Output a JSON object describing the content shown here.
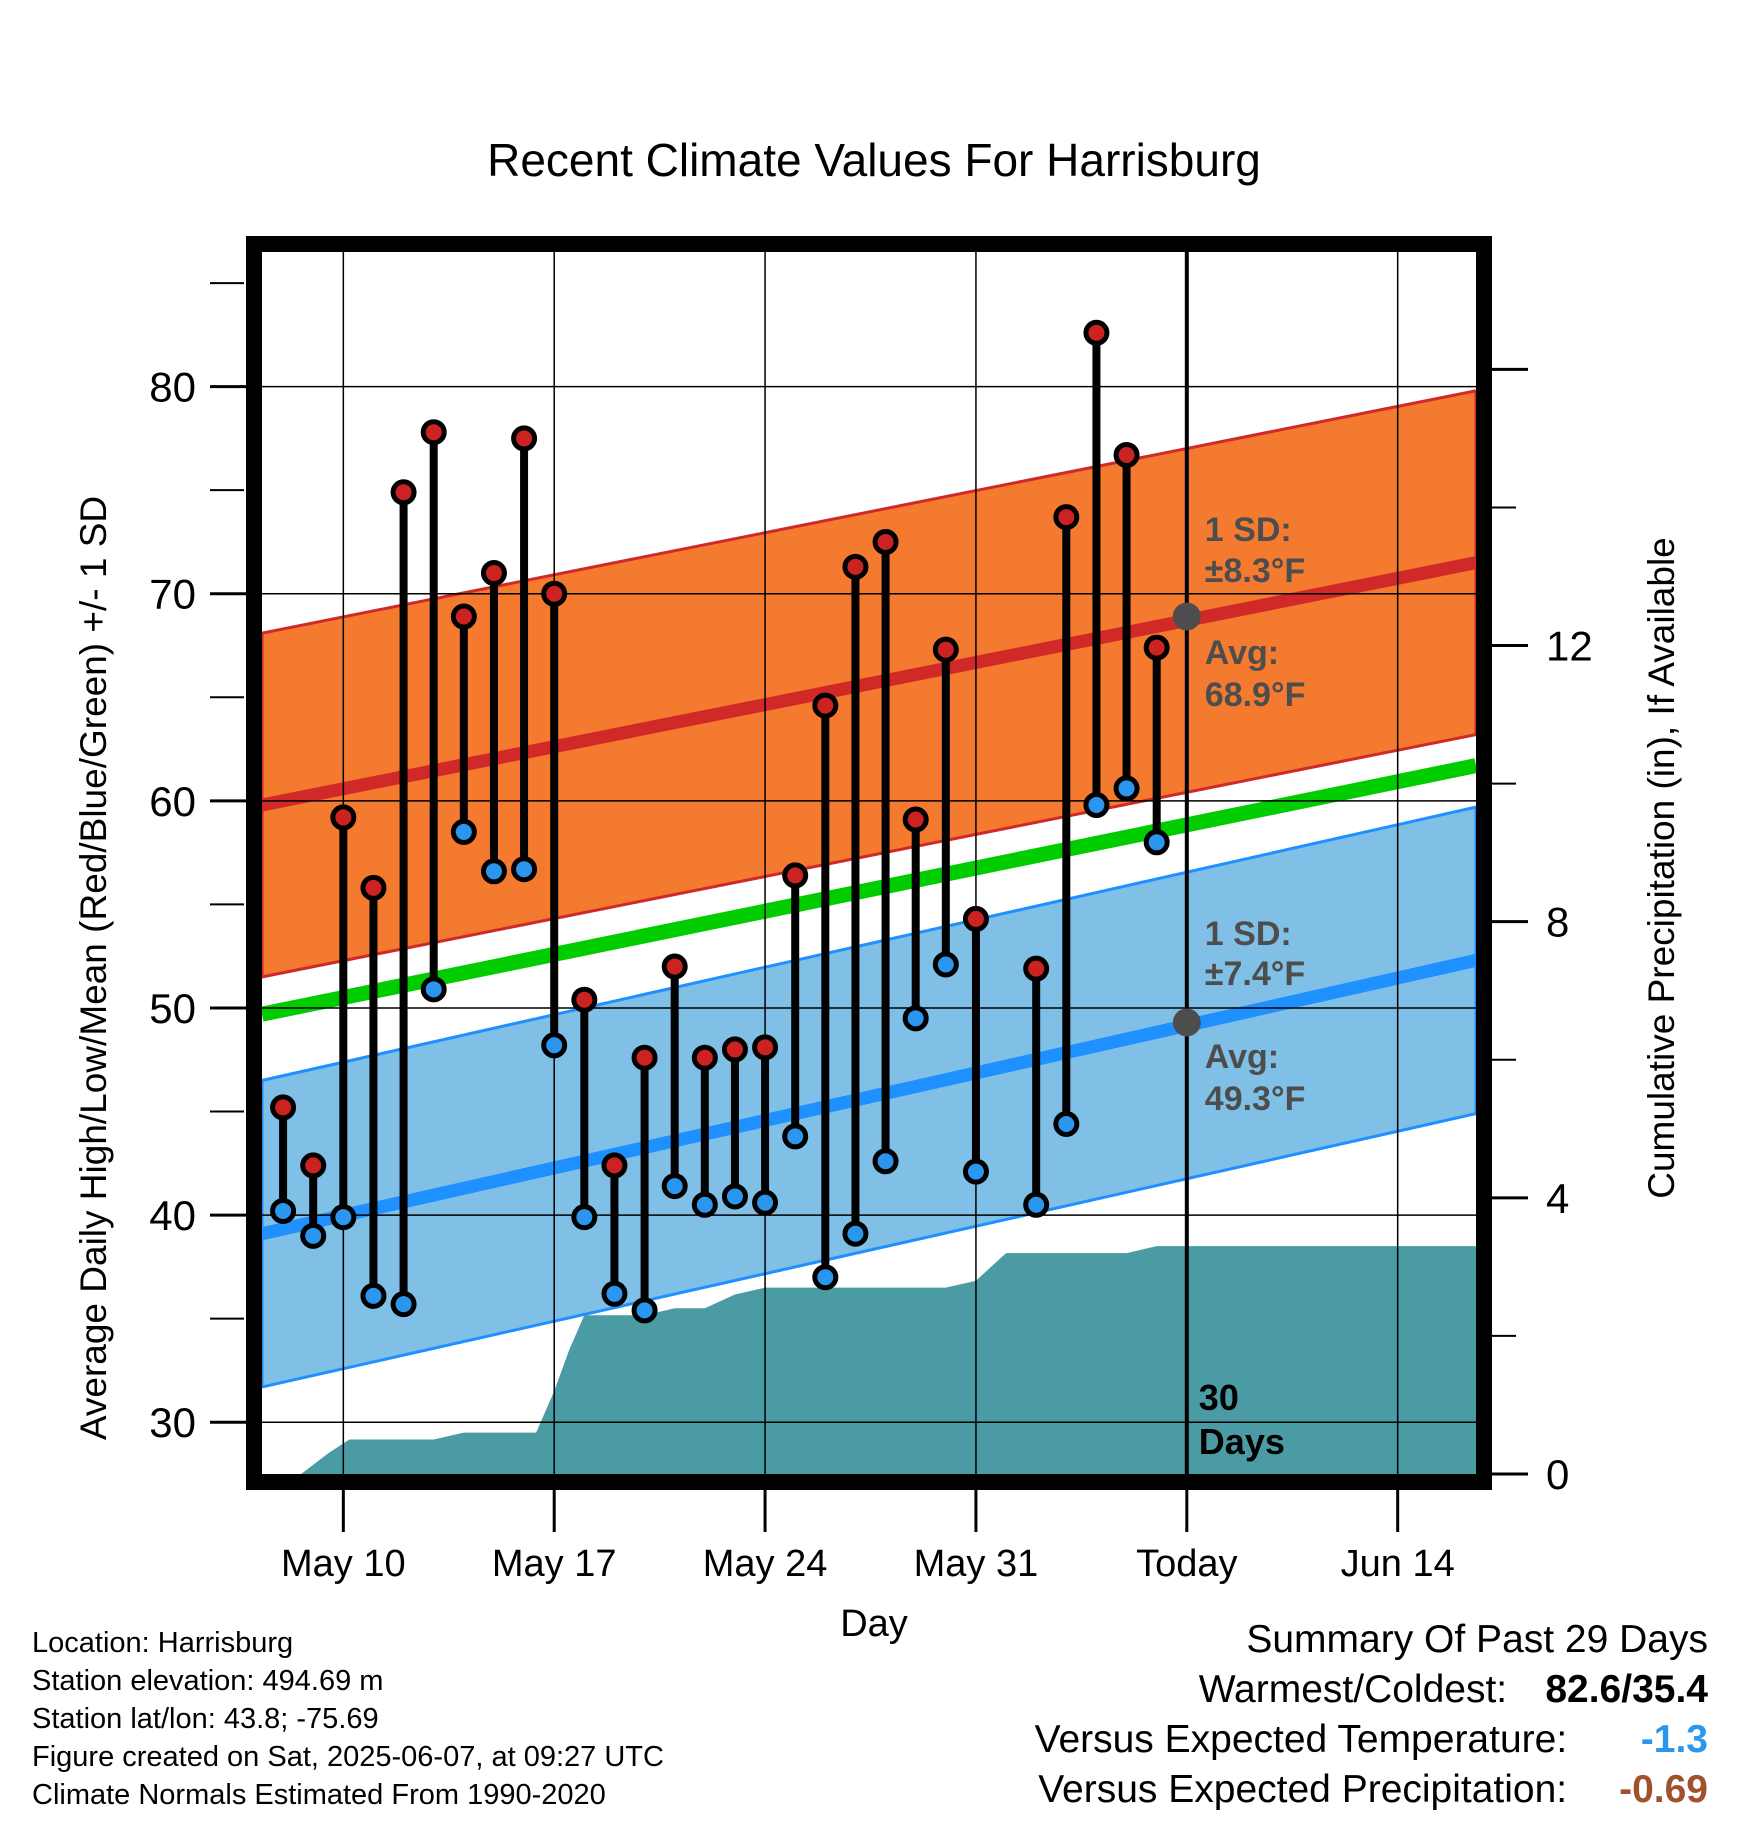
{
  "chart_data": {
    "type": "line",
    "title": "Recent Climate Values For Harrisburg",
    "xlabel": "Day",
    "ylabel": "Average Daily High/Low/Mean (Red/Blue/Green) +/- 1 SD",
    "y2label": "Cumulative Precipitation (in), If Available",
    "ylim": [
      27.5,
      86.5
    ],
    "y2lim": [
      0,
      17.7
    ],
    "y_ticks": [
      30,
      40,
      50,
      60,
      70,
      80
    ],
    "y2_ticks": [
      0,
      4,
      8,
      12
    ],
    "x_ticks": [
      "May 10",
      "May 17",
      "May 24",
      "May 31",
      "Today",
      "Jun 14"
    ],
    "x_tick_days": [
      10,
      17,
      24,
      31,
      38,
      45
    ],
    "xlim": [
      7.3,
      47.6
    ],
    "grid": true,
    "today_day": 38,
    "today_label": "30\nDays",
    "days": [
      8,
      9,
      10,
      11,
      12,
      13,
      14,
      15,
      16,
      17,
      18,
      19,
      20,
      21,
      22,
      23,
      24,
      25,
      26,
      27,
      28,
      29,
      30,
      31,
      32,
      33,
      34,
      35,
      36,
      37
    ],
    "observed_high": [
      45.2,
      42.4,
      59.2,
      55.8,
      74.9,
      77.8,
      68.9,
      71.0,
      77.5,
      70.0,
      50.4,
      42.4,
      47.6,
      52.0,
      47.6,
      48.0,
      48.1,
      56.4,
      64.6,
      71.3,
      72.5,
      59.1,
      67.3,
      54.3,
      null,
      51.9,
      73.7,
      82.6,
      76.7,
      67.4
    ],
    "observed_low": [
      40.2,
      39.0,
      39.9,
      36.1,
      35.7,
      50.9,
      58.5,
      56.6,
      56.7,
      48.2,
      39.9,
      36.2,
      35.4,
      41.4,
      40.5,
      40.9,
      40.6,
      43.8,
      37.0,
      39.1,
      42.6,
      49.5,
      52.1,
      42.1,
      null,
      40.5,
      44.4,
      59.8,
      60.6,
      58.0
    ],
    "normal_high_mean": {
      "x": [
        7.3,
        47.6
      ],
      "y": [
        59.8,
        71.5
      ]
    },
    "normal_high_sd": 8.3,
    "normal_low_mean": {
      "x": [
        7.3,
        47.6
      ],
      "y": [
        39.1,
        52.3
      ]
    },
    "normal_low_sd": 7.4,
    "normal_mean": {
      "x": [
        7.3,
        47.6
      ],
      "y": [
        49.7,
        61.7
      ]
    },
    "colors": {
      "high_band": "#f47a2f",
      "high_line": "#d12828",
      "low_band": "#80c0e6",
      "low_line": "#1e90ff",
      "mean_line": "#00cc00",
      "precip": "#4a9ba3",
      "high_marker": "#cc2222",
      "low_marker": "#2b96ee",
      "avg_dot": "#4d4d4d"
    },
    "precip_cumulative": {
      "x": [
        7.3,
        8.6,
        9.5,
        10.2,
        11.0,
        12.0,
        13.0,
        14.0,
        15.0,
        16.0,
        16.4,
        17.0,
        17.5,
        18.0,
        19.0,
        20.0,
        21.0,
        22.0,
        23.0,
        24.0,
        25.0,
        26.0,
        27.0,
        28.0,
        29.0,
        30.0,
        31.0,
        32.0,
        33.0,
        34.0,
        35.0,
        36.0,
        37.0,
        38.0,
        39.0,
        40.0,
        47.6
      ],
      "y": [
        0,
        0,
        0.3,
        0.5,
        0.5,
        0.5,
        0.5,
        0.6,
        0.6,
        0.6,
        0.6,
        1.2,
        1.8,
        2.3,
        2.3,
        2.3,
        2.4,
        2.4,
        2.6,
        2.7,
        2.7,
        2.7,
        2.7,
        2.7,
        2.7,
        2.7,
        2.8,
        3.2,
        3.2,
        3.2,
        3.2,
        3.2,
        3.3,
        3.3,
        3.3,
        3.3,
        3.3
      ]
    },
    "annotations": {
      "high_sd": "1 SD:",
      "high_sd_value": "±8.3°F",
      "high_avg": "Avg:",
      "high_avg_value": "68.9°F",
      "high_avg_marker": 68.9,
      "low_sd": "1 SD:",
      "low_sd_value": "±7.4°F",
      "low_avg": "Avg:",
      "low_avg_value": "49.3°F",
      "low_avg_marker": 49.3
    }
  },
  "info": {
    "location": "Location: Harrisburg",
    "elevation": "Station elevation: 494.69 m",
    "latlon": "Station lat/lon: 43.8; -75.69",
    "created": "Figure created on Sat, 2025-06-07, at 09:27 UTC",
    "normals": "Climate Normals Estimated From 1990-2020"
  },
  "summary": {
    "title": "Summary Of Past 29 Days",
    "warmest_label": "Warmest/Coldest:",
    "warmest_value": "82.6/35.4",
    "temp_label": "Versus Expected Temperature:",
    "temp_value": "-1.3",
    "temp_color": "#2b96ee",
    "precip_label": "Versus Expected Precipitation:",
    "precip_value": "-0.69",
    "precip_color": "#a0522d"
  }
}
